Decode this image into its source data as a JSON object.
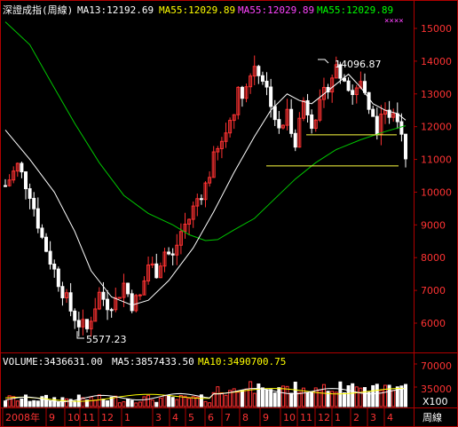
{
  "colors": {
    "background": "#000000",
    "frame": "#b00000",
    "up": "#ff3232",
    "down": "#ffffff",
    "ma13": "#ffffff",
    "ma55": "#00c800",
    "support": "#ffff40",
    "vol_ma5": "#ffffff",
    "vol_ma10": "#ffff00"
  },
  "header": {
    "title": "深證成指(周線)",
    "ma13": "MA13:12192.69",
    "ma55_a": "MA55:12029.89",
    "ma55_b": "MA55:12029.89",
    "ma55_c": "MA55:12029.89",
    "marker": "××××"
  },
  "volume_header": {
    "volume": "VOLUME:3436631.00",
    "ma5": "MA5:3857433.50",
    "ma10": "MA10:3490700.75"
  },
  "volume_axis": {
    "ticks": [
      "70000",
      "35000"
    ],
    "unit": "X100"
  },
  "time_axis": {
    "labels": [
      "2008年",
      "9",
      "10",
      "11",
      "12",
      "1",
      "3",
      "4",
      "5",
      "6",
      "7",
      "8",
      "9",
      "10",
      "11",
      "12",
      "1",
      "2",
      "3",
      "4"
    ],
    "period": "周線"
  },
  "annotations": {
    "high_label": "14096.87",
    "low_label": "5577.23"
  },
  "chart_data": {
    "type": "candlestick",
    "ylim": [
      5200,
      15500
    ],
    "y_ticks": [
      6000,
      7000,
      8000,
      9000,
      10000,
      11000,
      12000,
      13000,
      14000,
      15000
    ],
    "volume_ylim": [
      0,
      90000
    ],
    "support_levels": [
      11750,
      10800
    ],
    "ma13_points": [
      [
        0,
        11900
      ],
      [
        6,
        11000
      ],
      [
        12,
        10000
      ],
      [
        17,
        8800
      ],
      [
        21,
        7600
      ],
      [
        26,
        6800
      ],
      [
        31,
        6550
      ],
      [
        35,
        6700
      ],
      [
        40,
        7300
      ],
      [
        46,
        8300
      ],
      [
        51,
        9400
      ],
      [
        56,
        10600
      ],
      [
        61,
        11700
      ],
      [
        65,
        12500
      ],
      [
        69,
        13000
      ],
      [
        72,
        12800
      ],
      [
        75,
        12700
      ],
      [
        78,
        13000
      ],
      [
        81,
        13300
      ],
      [
        84,
        13600
      ],
      [
        87,
        13200
      ],
      [
        90,
        12700
      ],
      [
        93,
        12500
      ],
      [
        96,
        12400
      ],
      [
        98,
        12200
      ]
    ],
    "ma55_points": [
      [
        0,
        15200
      ],
      [
        6,
        14500
      ],
      [
        11,
        13400
      ],
      [
        17,
        12100
      ],
      [
        23,
        10900
      ],
      [
        29,
        9900
      ],
      [
        35,
        9350
      ],
      [
        41,
        9000
      ],
      [
        45,
        8700
      ],
      [
        49,
        8520
      ],
      [
        52,
        8550
      ],
      [
        56,
        8850
      ],
      [
        61,
        9200
      ],
      [
        66,
        9800
      ],
      [
        71,
        10400
      ],
      [
        76,
        10900
      ],
      [
        81,
        11300
      ],
      [
        87,
        11600
      ],
      [
        93,
        11850
      ],
      [
        98,
        12030
      ]
    ]
  }
}
